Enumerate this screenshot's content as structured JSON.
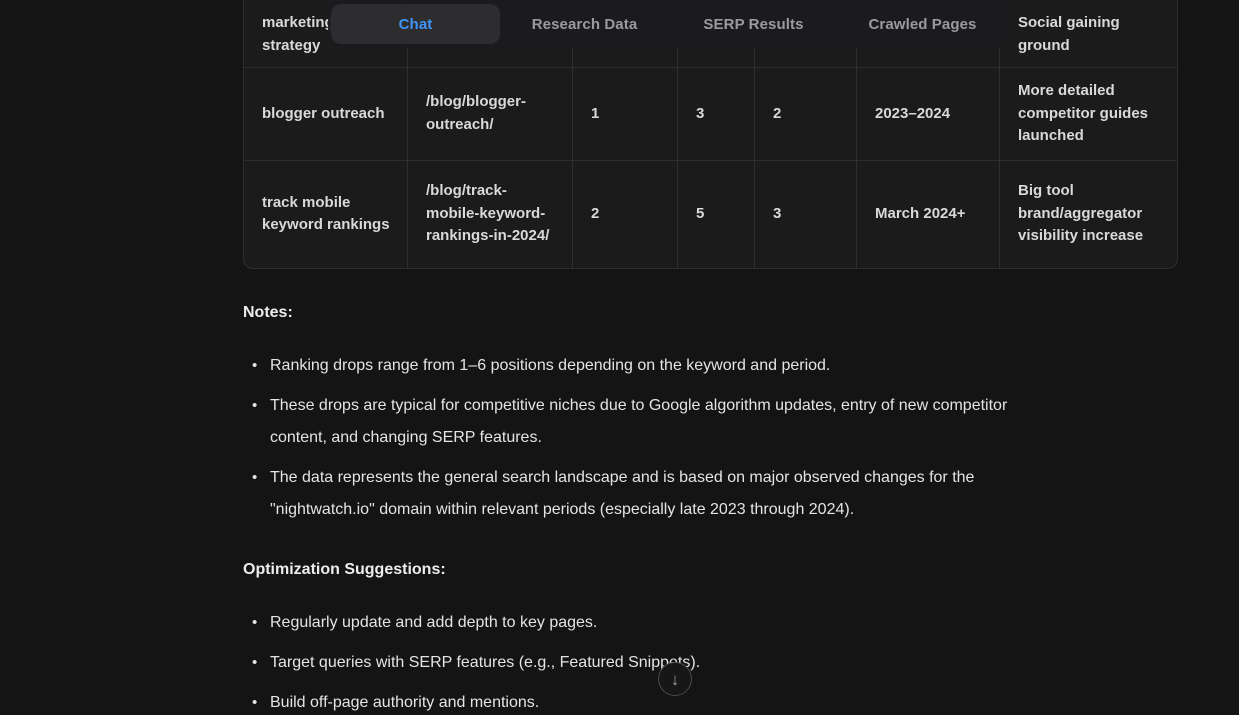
{
  "tabs": {
    "items": [
      {
        "id": "chat",
        "label": "Chat",
        "active": true
      },
      {
        "id": "research-data",
        "label": "Research Data",
        "active": false
      },
      {
        "id": "serp-results",
        "label": "SERP Results",
        "active": false
      },
      {
        "id": "crawled-pages",
        "label": "Crawled Pages",
        "active": false
      }
    ]
  },
  "table": {
    "rows": [
      {
        "keyword": "marketing strategy",
        "url": "",
        "v1": "",
        "v2": "",
        "v3": "",
        "period": "",
        "note": "Social gaining ground",
        "cut": true
      },
      {
        "keyword": "blogger outreach",
        "url": "/blog/blogger-outreach/",
        "v1": "1",
        "v2": "3",
        "v3": "2",
        "period": "2023–2024",
        "note": "More detailed competitor guides launched",
        "cut": false
      },
      {
        "keyword": "track mobile keyword rankings",
        "url": "/blog/track-mobile-keyword-rankings-in-2024/",
        "v1": "2",
        "v2": "5",
        "v3": "3",
        "period": "March 2024+",
        "note": "Big tool brand/aggregator visibility increase",
        "cut": false
      }
    ]
  },
  "notes": {
    "heading": "Notes:",
    "items": [
      "Ranking drops range from 1–6 positions depending on the keyword and period.",
      "These drops are typical for competitive niches due to Google algorithm updates, entry of new competitor content, and changing SERP features.",
      "The data represents the general search landscape and is based on major observed changes for the \"nightwatch.io\" domain within relevant periods (especially late 2023 through 2024)."
    ]
  },
  "suggestions": {
    "heading": "Optimization Suggestions:",
    "items": [
      "Regularly update and add depth to key pages.",
      "Target queries with SERP features (e.g., Featured Snippets).",
      "Build off-page authority and mentions."
    ]
  },
  "scroll_button": {
    "icon": "↓"
  },
  "colors": {
    "page_bg": "#141414",
    "table_cell_bg": "#1b1b1c",
    "table_border": "#2e2e2e",
    "tab_active_bg": "#2d2d30",
    "tab_active_text": "#4094f7",
    "tab_inactive_text": "#9b9b9f",
    "body_text": "#e4e4e4"
  }
}
